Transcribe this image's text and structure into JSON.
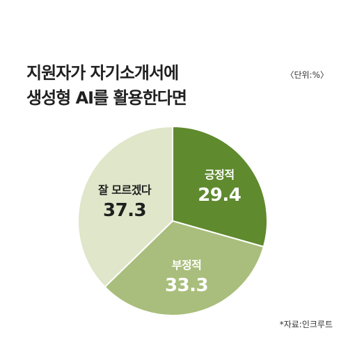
{
  "title_lines": [
    "지원자가 자기소개서에",
    "생성형 AI를 활용한다면"
  ],
  "unit": "〈단위:%〉",
  "source": "*자료:인크루트",
  "colors": {
    "positive": "#5f8a2e",
    "negative": "#a9be7c",
    "unknown": "#dfe6c9",
    "label_light": "#ffffff",
    "label_dark": "#1f1f1f"
  },
  "chart_data": {
    "type": "pie",
    "title": "지원자가 자기소개서에 생성형 AI를 활용한다면",
    "unit": "%",
    "slices": [
      {
        "label": "긍정적",
        "value": 29.4,
        "color": "#5f8a2e",
        "text_color": "#ffffff"
      },
      {
        "label": "부정적",
        "value": 33.3,
        "color": "#a9be7c",
        "text_color": "#ffffff"
      },
      {
        "label": "잘 모르겠다",
        "value": 37.3,
        "color": "#dfe6c9",
        "text_color": "#1f1f1f"
      }
    ]
  }
}
